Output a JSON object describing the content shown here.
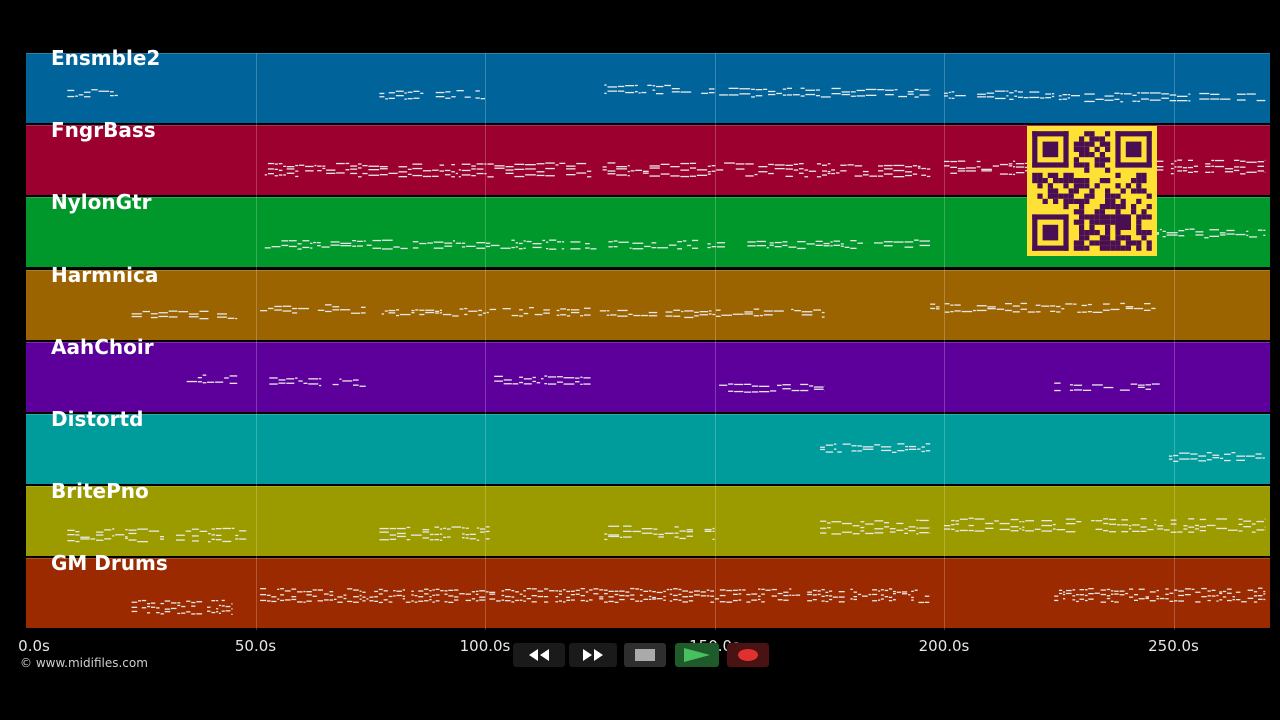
{
  "tracks": [
    {
      "name": "Ensmble2",
      "color": "#00649b"
    },
    {
      "name": "FngrBass",
      "color": "#9b002e"
    },
    {
      "name": "NylonGtr",
      "color": "#00972b"
    },
    {
      "name": "Harmnica",
      "color": "#9b6400"
    },
    {
      "name": "AahChoir",
      "color": "#5d009b"
    },
    {
      "name": "Distortd",
      "color": "#009b9b"
    },
    {
      "name": "BritePno",
      "color": "#9b9b00"
    },
    {
      "name": "GM Drums",
      "color": "#9b2a00"
    }
  ],
  "axis": {
    "ticks": [
      "0.0s",
      "50.0s",
      "100.0s",
      "150.0s",
      "200.0s",
      "250.0s"
    ],
    "max_seconds": 270
  },
  "copyright": "© www.midifiles.com",
  "controls": {
    "rewind": "rewind-icon",
    "fast_forward": "fast-forward-icon",
    "stop": "stop-icon",
    "play": "play-icon",
    "record": "record-icon"
  },
  "qr_code": "qr-code"
}
